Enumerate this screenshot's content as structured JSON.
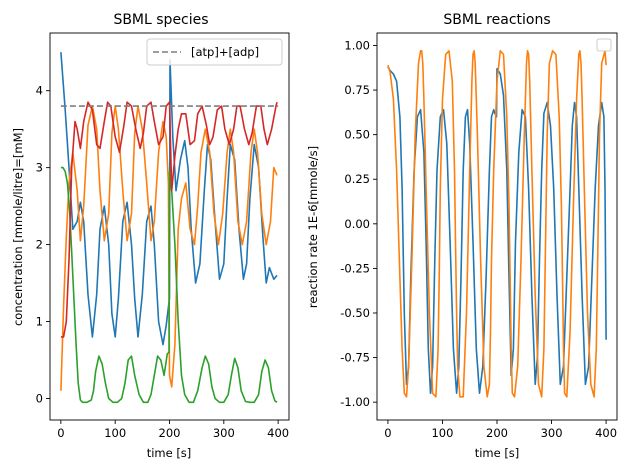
{
  "chart_data": [
    {
      "type": "line",
      "title": "SBML species",
      "xlabel": "time [s]",
      "ylabel": "concentration [mmole/litre]=[mM]",
      "xlim": [
        -20,
        420
      ],
      "ylim": [
        -0.28,
        4.75
      ],
      "xticks": [
        0,
        100,
        200,
        300,
        400
      ],
      "yticks": [
        0,
        1,
        2,
        3,
        4
      ],
      "grid": false,
      "legend": {
        "placement": "top-right",
        "entries": [
          "[atp]+[adp]"
        ]
      },
      "series": [
        {
          "color": "#1f77b4",
          "x": [
            0,
            8,
            15,
            22,
            30,
            36,
            42,
            50,
            58,
            66,
            72,
            80,
            88,
            94,
            100,
            106,
            114,
            122,
            130,
            136,
            142,
            150,
            158,
            166,
            172,
            180,
            188,
            194,
            200,
            201,
            206,
            212,
            220,
            228,
            234,
            240,
            248,
            256,
            264,
            270,
            276,
            284,
            292,
            300,
            306,
            312,
            320,
            328,
            336,
            342,
            348,
            356,
            364,
            372,
            378,
            384,
            392,
            398
          ],
          "values": [
            4.5,
            3.75,
            3.0,
            2.2,
            2.3,
            2.55,
            2.3,
            1.35,
            0.8,
            1.35,
            2.2,
            2.5,
            2.0,
            1.1,
            0.8,
            1.3,
            2.3,
            2.55,
            2.0,
            1.3,
            0.8,
            1.35,
            2.3,
            2.5,
            2.0,
            1.0,
            0.7,
            0.95,
            1.3,
            4.4,
            3.4,
            2.7,
            3.1,
            3.35,
            3.0,
            2.2,
            1.5,
            1.75,
            2.7,
            3.3,
            3.1,
            2.3,
            1.55,
            1.75,
            2.6,
            3.3,
            3.1,
            2.2,
            1.55,
            1.75,
            2.6,
            3.3,
            3.0,
            2.1,
            1.5,
            1.7,
            1.55,
            1.6
          ]
        },
        {
          "color": "#ff7f0e",
          "x": [
            0,
            5,
            10,
            15,
            22,
            30,
            36,
            42,
            50,
            58,
            66,
            72,
            80,
            88,
            94,
            100,
            106,
            114,
            122,
            130,
            136,
            142,
            150,
            158,
            166,
            172,
            180,
            188,
            194,
            198,
            200,
            204,
            210,
            216,
            222,
            230,
            238,
            246,
            252,
            258,
            266,
            274,
            282,
            290,
            298,
            306,
            312,
            318,
            326,
            334,
            342,
            350,
            356,
            362,
            370,
            378,
            386,
            392,
            398
          ],
          "values": [
            0.1,
            1.2,
            2.1,
            2.8,
            3.2,
            2.7,
            2.05,
            2.5,
            3.55,
            3.8,
            3.5,
            2.7,
            2.05,
            2.4,
            3.45,
            3.8,
            3.5,
            2.7,
            2.05,
            2.4,
            3.45,
            3.8,
            3.5,
            2.8,
            2.05,
            2.3,
            3.2,
            3.6,
            3.4,
            2.8,
            0.3,
            0.15,
            0.7,
            2.2,
            2.6,
            2.8,
            2.2,
            2.0,
            2.5,
            3.2,
            3.5,
            3.2,
            2.4,
            2.0,
            2.4,
            3.2,
            3.5,
            3.2,
            2.3,
            2.0,
            2.3,
            3.2,
            3.5,
            3.2,
            2.4,
            2.0,
            2.3,
            3.0,
            2.9
          ]
        },
        {
          "color": "#2ca02c",
          "x": [
            0,
            4,
            8,
            12,
            16,
            20,
            24,
            28,
            32,
            36,
            40,
            48,
            56,
            60,
            64,
            70,
            76,
            82,
            88,
            96,
            104,
            112,
            118,
            124,
            130,
            136,
            144,
            152,
            160,
            166,
            172,
            178,
            184,
            190,
            196,
            199,
            200,
            204,
            210,
            216,
            222,
            228,
            236,
            244,
            252,
            260,
            266,
            272,
            278,
            284,
            292,
            300,
            308,
            314,
            320,
            326,
            332,
            340,
            348,
            356,
            364,
            370,
            376,
            382,
            388,
            394,
            398
          ],
          "values": [
            3.0,
            3.0,
            2.95,
            2.8,
            2.45,
            1.9,
            1.3,
            0.7,
            0.2,
            -0.02,
            -0.05,
            -0.05,
            -0.02,
            0.1,
            0.35,
            0.55,
            0.45,
            0.2,
            0.0,
            -0.05,
            -0.05,
            0.0,
            0.2,
            0.5,
            0.55,
            0.3,
            0.05,
            -0.05,
            -0.05,
            0.05,
            0.3,
            0.55,
            0.5,
            0.3,
            0.58,
            0.6,
            2.95,
            2.7,
            2.0,
            1.0,
            0.3,
            0.05,
            -0.05,
            -0.05,
            0.1,
            0.4,
            0.55,
            0.45,
            0.15,
            0.0,
            -0.05,
            -0.05,
            0.05,
            0.3,
            0.52,
            0.4,
            0.1,
            -0.04,
            -0.05,
            -0.05,
            0.05,
            0.35,
            0.5,
            0.4,
            0.1,
            -0.03,
            -0.05
          ]
        },
        {
          "color": "#d62728",
          "x": [
            0,
            5,
            10,
            15,
            20,
            26,
            30,
            36,
            42,
            50,
            58,
            66,
            72,
            80,
            86,
            92,
            100,
            108,
            116,
            122,
            130,
            138,
            146,
            152,
            158,
            166,
            172,
            180,
            188,
            194,
            200,
            204,
            210,
            216,
            222,
            230,
            238,
            246,
            252,
            260,
            268,
            274,
            280,
            288,
            296,
            302,
            310,
            318,
            324,
            330,
            338,
            346,
            352,
            360,
            368,
            374,
            380,
            388,
            396,
            398
          ],
          "values": [
            0.8,
            0.8,
            1.0,
            1.8,
            3.0,
            3.6,
            3.5,
            3.25,
            3.6,
            3.85,
            3.75,
            3.3,
            3.25,
            3.6,
            3.85,
            3.8,
            3.4,
            3.2,
            3.55,
            3.85,
            3.8,
            3.5,
            3.25,
            3.45,
            3.8,
            3.85,
            3.6,
            3.3,
            3.4,
            3.8,
            3.85,
            2.7,
            3.15,
            3.5,
            3.7,
            3.7,
            3.3,
            3.35,
            3.7,
            3.8,
            3.55,
            3.3,
            3.4,
            3.75,
            3.8,
            3.5,
            3.3,
            3.5,
            3.8,
            3.8,
            3.5,
            3.3,
            3.45,
            3.8,
            3.8,
            3.5,
            3.3,
            3.5,
            3.8,
            3.85
          ]
        },
        {
          "name": "[atp]+[adp]",
          "color": "#7f7f7f",
          "dashed": true,
          "x": [
            0,
            400
          ],
          "values": [
            3.8,
            3.8
          ]
        }
      ]
    },
    {
      "type": "line",
      "title": "SBML reactions",
      "xlabel": "time [s]",
      "ylabel": "reaction rate 1E-6[mmole/s]",
      "xlim": [
        -20,
        420
      ],
      "ylim": [
        -1.1,
        1.07
      ],
      "xticks": [
        0,
        100,
        200,
        300,
        400
      ],
      "yticks": [
        -1.0,
        -0.75,
        -0.5,
        -0.25,
        0.0,
        0.25,
        0.5,
        0.75,
        1.0
      ],
      "grid": false,
      "legend": {
        "placement": "top-right",
        "entries": []
      },
      "series": [
        {
          "color": "#1f77b4",
          "x": [
            0,
            4,
            10,
            16,
            22,
            26,
            30,
            34,
            38,
            42,
            48,
            54,
            60,
            66,
            70,
            74,
            78,
            82,
            86,
            90,
            96,
            102,
            108,
            114,
            120,
            126,
            130,
            134,
            138,
            142,
            146,
            150,
            156,
            162,
            168,
            174,
            180,
            186,
            190,
            194,
            196,
            198,
            199,
            200,
            206,
            212,
            218,
            222,
            226,
            230,
            234,
            240,
            246,
            252,
            258,
            264,
            270,
            274,
            278,
            282,
            286,
            292,
            298,
            304,
            310,
            316,
            322,
            328,
            334,
            338,
            342,
            346,
            350,
            356,
            362,
            368,
            374,
            380,
            386,
            392,
            396,
            398,
            400
          ],
          "values": [
            0.88,
            0.86,
            0.84,
            0.8,
            0.6,
            0.2,
            -0.5,
            -0.9,
            -0.8,
            -0.3,
            0.3,
            0.6,
            0.64,
            0.4,
            -0.1,
            -0.7,
            -0.95,
            -0.8,
            -0.2,
            0.3,
            0.6,
            0.64,
            0.45,
            -0.1,
            -0.7,
            -0.95,
            -0.8,
            -0.3,
            0.3,
            0.6,
            0.64,
            0.45,
            -0.1,
            -0.7,
            -0.95,
            -0.8,
            -0.3,
            0.3,
            0.6,
            0.64,
            0.62,
            0.61,
            0.6,
            0.87,
            0.84,
            0.72,
            0.3,
            -0.3,
            -0.85,
            -0.7,
            -0.1,
            0.4,
            0.64,
            0.6,
            0.2,
            -0.4,
            -0.9,
            -0.75,
            -0.2,
            0.3,
            0.62,
            0.68,
            0.55,
            0.2,
            -0.4,
            -0.9,
            -0.8,
            -0.3,
            0.2,
            0.55,
            0.68,
            0.6,
            0.2,
            -0.4,
            -0.9,
            -0.8,
            -0.3,
            0.2,
            0.55,
            0.68,
            0.6,
            0.2,
            -0.65
          ]
        },
        {
          "color": "#ff7f0e",
          "x": [
            0,
            4,
            10,
            16,
            22,
            26,
            30,
            34,
            38,
            44,
            50,
            56,
            60,
            62,
            64,
            66,
            70,
            76,
            82,
            88,
            92,
            94,
            96,
            100,
            106,
            112,
            118,
            122,
            124,
            126,
            128,
            132,
            138,
            144,
            150,
            154,
            156,
            158,
            160,
            164,
            170,
            176,
            182,
            186,
            188,
            190,
            194,
            200,
            206,
            212,
            218,
            222,
            224,
            226,
            228,
            232,
            238,
            244,
            250,
            254,
            256,
            258,
            260,
            264,
            270,
            276,
            282,
            286,
            288,
            290,
            292,
            296,
            302,
            308,
            314,
            318,
            320,
            322,
            324,
            328,
            334,
            340,
            346,
            350,
            352,
            354,
            356,
            360,
            366,
            372,
            378,
            382,
            384,
            386,
            388,
            392,
            398,
            400
          ],
          "values": [
            0.89,
            0.85,
            0.7,
            0.3,
            -0.3,
            -0.7,
            -0.95,
            -0.97,
            -0.8,
            -0.2,
            0.5,
            0.9,
            0.97,
            0.97,
            0.9,
            0.7,
            0.2,
            -0.5,
            -0.95,
            -0.97,
            -0.7,
            -0.3,
            0.2,
            0.7,
            0.95,
            0.97,
            0.8,
            0.3,
            -0.1,
            -0.5,
            -0.8,
            -0.97,
            -0.97,
            -0.5,
            0.3,
            0.8,
            0.95,
            0.97,
            0.9,
            0.5,
            -0.2,
            -0.8,
            -0.97,
            -0.9,
            -0.6,
            -0.2,
            0.3,
            0.8,
            0.97,
            0.95,
            0.6,
            0.1,
            -0.3,
            -0.7,
            -0.95,
            -0.97,
            -0.8,
            -0.2,
            0.5,
            0.9,
            0.97,
            0.95,
            0.8,
            0.3,
            -0.4,
            -0.9,
            -0.97,
            -0.7,
            -0.3,
            0.1,
            0.5,
            0.9,
            0.97,
            0.95,
            0.6,
            0.1,
            -0.3,
            -0.7,
            -0.95,
            -0.97,
            -0.6,
            0.1,
            0.7,
            0.95,
            0.97,
            0.9,
            0.7,
            0.2,
            -0.5,
            -0.9,
            -0.97,
            -0.7,
            -0.3,
            0.1,
            0.5,
            0.9,
            0.97,
            0.89
          ]
        }
      ]
    }
  ]
}
